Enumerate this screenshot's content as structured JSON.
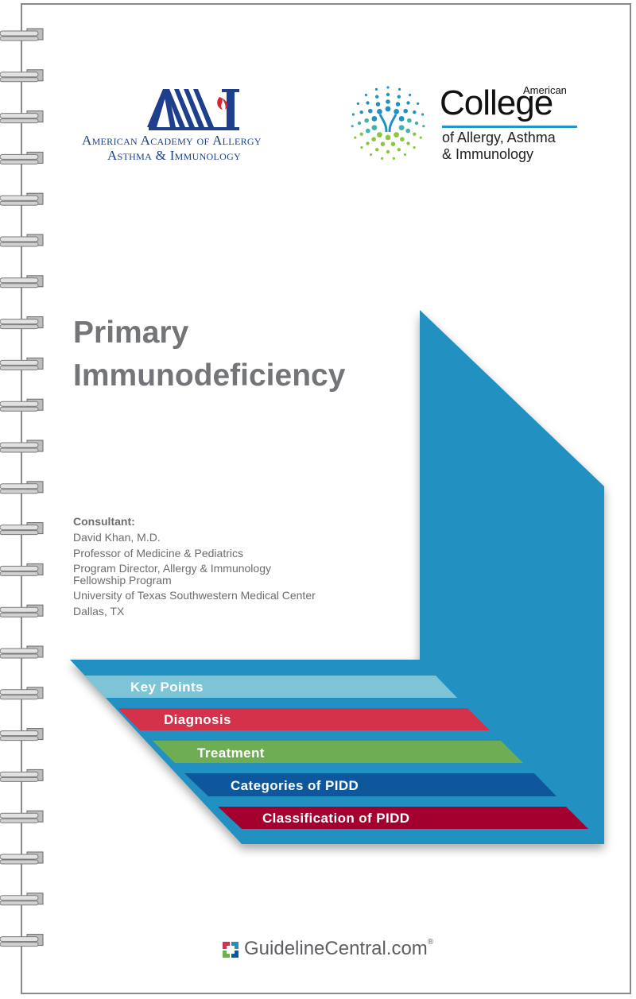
{
  "logos": {
    "aaaai": {
      "mark": "AAAAI",
      "line1": "American Academy of Allergy",
      "line2": "Asthma & Immunology"
    },
    "acaai": {
      "american": "American",
      "college": "College",
      "line1": "of Allergy, Asthma",
      "line2": "& Immunology"
    }
  },
  "title": {
    "line1": "Primary",
    "line2": "Immunodeficiency"
  },
  "consultant": {
    "label": "Consultant:",
    "lines": [
      "David Khan, M.D.",
      "Professor of Medicine & Pediatrics",
      "Program Director, Allergy & Immunology",
      "Fellowship Program",
      "University of Texas Southwestern Medical Center",
      "Dallas, TX"
    ]
  },
  "tabs": [
    {
      "label": "Key Points",
      "color": "#7cc4d6"
    },
    {
      "label": "Diagnosis",
      "color": "#d3324a"
    },
    {
      "label": "Treatment",
      "color": "#6ead54"
    },
    {
      "label": "Categories of PIDD",
      "color": "#0f579d"
    },
    {
      "label": "Classification of PIDD",
      "color": "#a3002f"
    }
  ],
  "colors": {
    "band": "#2191c2",
    "aaaai": "#1d3f8c",
    "title": "#737579"
  },
  "footer": {
    "brand": "GuidelineCentral.com",
    "mark": "®",
    "icon": "guideline-central-logo-icon"
  }
}
